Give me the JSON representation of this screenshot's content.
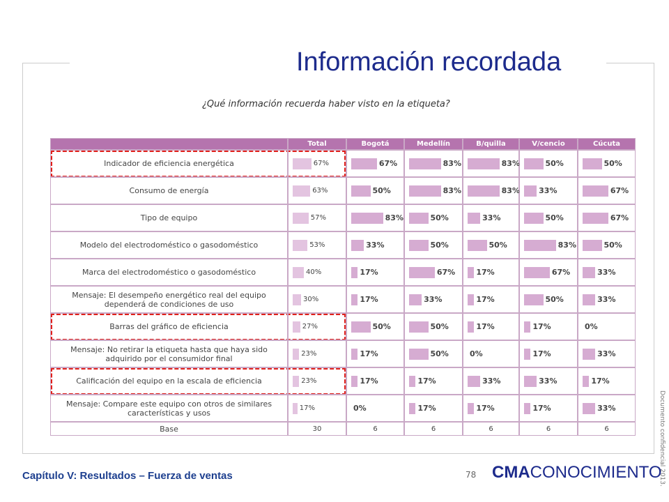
{
  "header": {
    "title": "Información recordada",
    "subtitle": "¿Qué información recuerda haber visto en la etiqueta?"
  },
  "table": {
    "columns": [
      "Total",
      "Bogotá",
      "Medellín",
      "B/quilla",
      "V/cencio",
      "Cúcuta"
    ],
    "rows": [
      {
        "label": "Indicador de eficiencia energética",
        "values": [
          67,
          67,
          83,
          83,
          50,
          50
        ],
        "value_labels": [
          "67%",
          "67%",
          "83%",
          "83%",
          "50%",
          "50%"
        ]
      },
      {
        "label": "Consumo de energía",
        "values": [
          63,
          50,
          83,
          83,
          33,
          67
        ],
        "value_labels": [
          "63%",
          "50%",
          "83%",
          "83%",
          "33%",
          "67%"
        ]
      },
      {
        "label": "Tipo de equipo",
        "values": [
          57,
          83,
          50,
          33,
          50,
          67
        ],
        "value_labels": [
          "57%",
          "83%",
          "50%",
          "33%",
          "50%",
          "67%"
        ]
      },
      {
        "label": "Modelo del electrodoméstico  o gasodoméstico",
        "values": [
          53,
          33,
          50,
          50,
          83,
          50
        ],
        "value_labels": [
          "53%",
          "33%",
          "50%",
          "50%",
          "83%",
          "50%"
        ]
      },
      {
        "label": "Marca del electrodoméstico  o gasodoméstico",
        "values": [
          40,
          17,
          67,
          17,
          67,
          33
        ],
        "value_labels": [
          "40%",
          "17%",
          "67%",
          "17%",
          "67%",
          "33%"
        ]
      },
      {
        "label": "Mensaje: El desempeño energético real del equipo dependerá de condiciones de uso",
        "values": [
          30,
          17,
          33,
          17,
          50,
          33
        ],
        "value_labels": [
          "30%",
          "17%",
          "33%",
          "17%",
          "50%",
          "33%"
        ]
      },
      {
        "label": "Barras del gráfico de eficiencia",
        "values": [
          27,
          50,
          50,
          17,
          17,
          0
        ],
        "value_labels": [
          "27%",
          "50%",
          "50%",
          "17%",
          "17%",
          "0%"
        ]
      },
      {
        "label": "Mensaje: No retirar la etiqueta  hasta que haya sido adquirido por el consumidor final",
        "values": [
          23,
          17,
          50,
          0,
          17,
          33
        ],
        "value_labels": [
          "23%",
          "17%",
          "50%",
          "0%",
          "17%",
          "33%"
        ]
      },
      {
        "label": "Calificación del equipo en la escala de eficiencia",
        "values": [
          23,
          17,
          17,
          33,
          33,
          17
        ],
        "value_labels": [
          "23%",
          "17%",
          "17%",
          "33%",
          "33%",
          "17%"
        ]
      },
      {
        "label": "Mensaje: Compare este equipo con otros de similares características  y usos",
        "values": [
          17,
          0,
          17,
          17,
          17,
          33
        ],
        "value_labels": [
          "17%",
          "0%",
          "17%",
          "17%",
          "17%",
          "33%"
        ]
      }
    ],
    "base": {
      "label": "Base",
      "values": [
        30,
        6,
        6,
        6,
        6,
        6
      ]
    }
  },
  "footer": {
    "chapter": "Capítulo V: Resultados – Fuerza de ventas",
    "page": "78",
    "logo_bold": "CMA",
    "logo_rest": "CONOCIMIENTO",
    "confidential": "Documento confidencial 2013."
  }
}
